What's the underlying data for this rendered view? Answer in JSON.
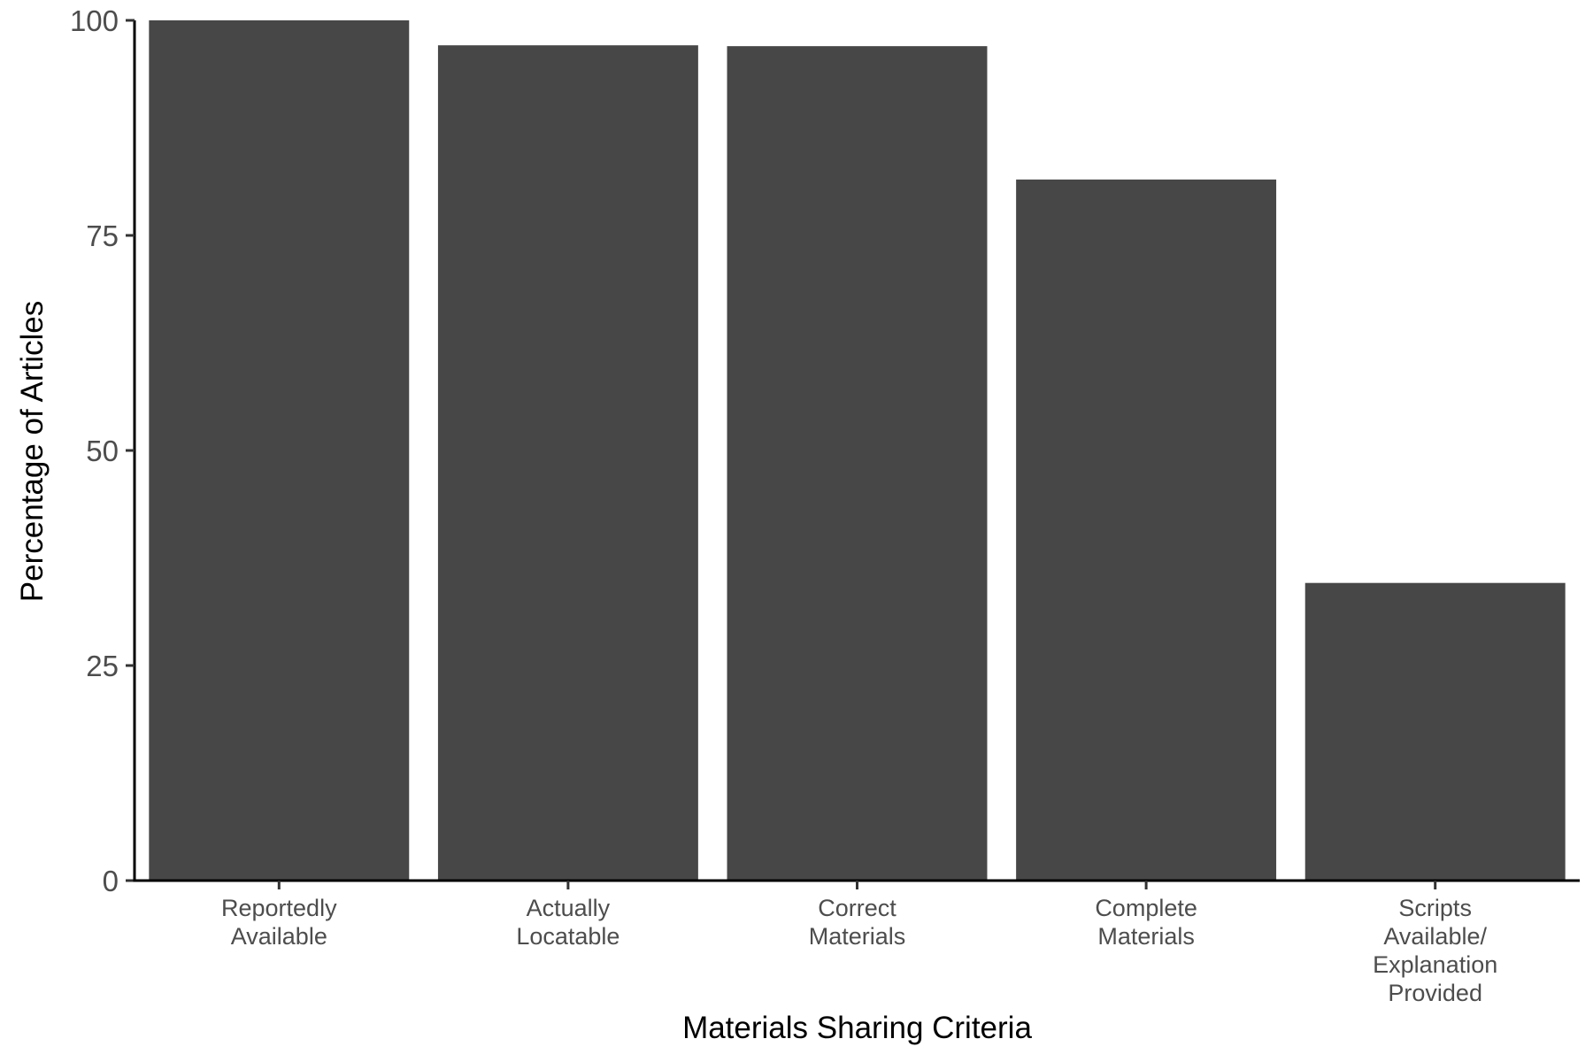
{
  "chart_data": {
    "type": "bar",
    "categories": [
      [
        "Reportedly",
        "Available"
      ],
      [
        "Actually",
        "Locatable"
      ],
      [
        "Correct",
        "Materials"
      ],
      [
        "Complete",
        "Materials"
      ],
      [
        "Scripts",
        "Available/",
        "Explanation",
        "Provided"
      ]
    ],
    "values": [
      100,
      97.1,
      97.0,
      81.5,
      34.6
    ],
    "xlabel": "Materials Sharing Criteria",
    "ylabel": "Percentage of Articles",
    "ylim": [
      0,
      100
    ],
    "yticks": [
      0,
      25,
      50,
      75,
      100
    ],
    "bar_color": "#474747",
    "axis_color": "#000000",
    "grid": false,
    "legend": false
  }
}
